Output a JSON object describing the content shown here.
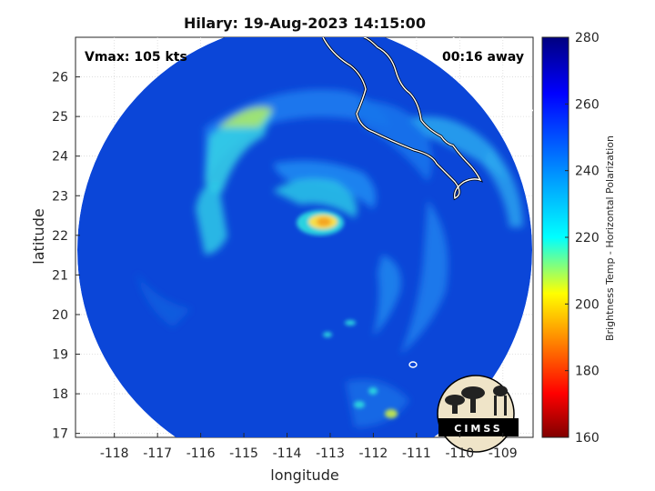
{
  "title": "Hilary: 19-Aug-2023 14:15:00",
  "vmax_label": "Vmax: 105 kts",
  "time_away_label": "00:16 away",
  "x_axis": {
    "label": "longitude",
    "ticks": [
      "-118",
      "-117",
      "-116",
      "-115",
      "-114",
      "-113",
      "-112",
      "-111",
      "-110",
      "-109"
    ]
  },
  "y_axis": {
    "label": "latitude",
    "ticks": [
      "17",
      "18",
      "19",
      "20",
      "21",
      "22",
      "23",
      "24",
      "25",
      "26"
    ]
  },
  "colorbar": {
    "label": "Brightness Temp - Horizontal Polarization",
    "ticks": [
      "160",
      "180",
      "200",
      "220",
      "240",
      "260",
      "280"
    ],
    "range": [
      160,
      280
    ],
    "colormap": "jet"
  },
  "logo": {
    "text": "CIMSS"
  },
  "map_extent": {
    "lon": [
      -118.9,
      -108.3
    ],
    "lat": [
      16.9,
      27.0
    ]
  },
  "storm_center": {
    "lon": -113.1,
    "lat": 22.3
  },
  "colors": {
    "background_swath": "#0a3fd4",
    "coastline": "#ffffff",
    "eyewall": "#f5a623"
  }
}
